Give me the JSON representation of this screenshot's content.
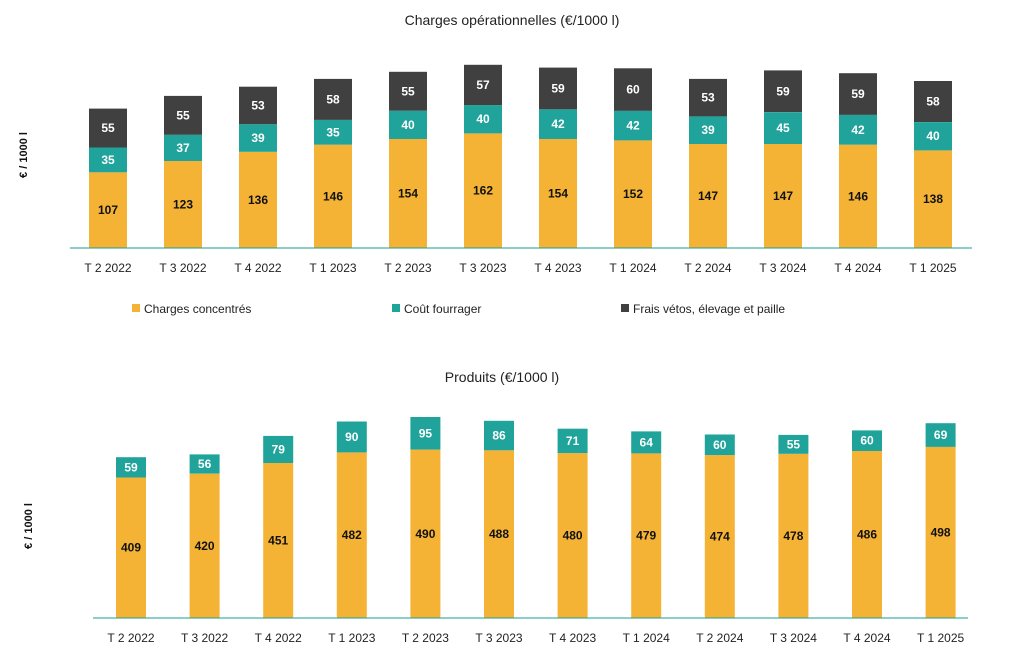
{
  "chart_data": [
    {
      "type": "bar",
      "stacked": true,
      "title": "Charges opérationnelles (€/1000 l)",
      "ylabel": "€ / 1000 l",
      "categories": [
        "T 2 2022",
        "T 3 2022",
        "T 4 2022",
        "T 1 2023",
        "T 2 2023",
        "T 3 2023",
        "T 4 2023",
        "T 1 2024",
        "T 2 2024",
        "T 3 2024",
        "T 4 2024",
        "T 1 2025"
      ],
      "series": [
        {
          "name": "Charges concentrés",
          "color": "#F5B335",
          "label_color": "#111111",
          "values": [
            107,
            123,
            136,
            146,
            154,
            162,
            154,
            152,
            147,
            147,
            146,
            138
          ]
        },
        {
          "name": "Coût fourrager",
          "color": "#1FA39A",
          "label_color": "#ffffff",
          "values": [
            35,
            37,
            39,
            35,
            40,
            40,
            42,
            42,
            39,
            45,
            42,
            40
          ]
        },
        {
          "name": "Frais vétos, élevage et paille",
          "color": "#404040",
          "label_color": "#ffffff",
          "values": [
            55,
            55,
            53,
            58,
            55,
            57,
            59,
            60,
            53,
            59,
            59,
            58
          ]
        }
      ],
      "legend_position": "bottom",
      "grid": false
    },
    {
      "type": "bar",
      "stacked": true,
      "title": "Produits (€/1000 l)",
      "ylabel": "€ / 1000 l",
      "categories": [
        "T 2 2022",
        "T 3 2022",
        "T 4 2022",
        "T 1 2023",
        "T 2 2023",
        "T 3 2023",
        "T 4 2023",
        "T 1 2024",
        "T 2 2024",
        "T 3 2024",
        "T 4 2024",
        "T 1 2025"
      ],
      "series": [
        {
          "color": "#F5B335",
          "label_color": "#111111",
          "values": [
            409,
            420,
            451,
            482,
            490,
            488,
            480,
            479,
            474,
            478,
            486,
            498
          ]
        },
        {
          "color": "#1FA39A",
          "label_color": "#ffffff",
          "values": [
            59,
            56,
            79,
            90,
            95,
            86,
            71,
            64,
            60,
            55,
            60,
            69
          ]
        }
      ],
      "legend_position": "none",
      "grid": false
    }
  ]
}
